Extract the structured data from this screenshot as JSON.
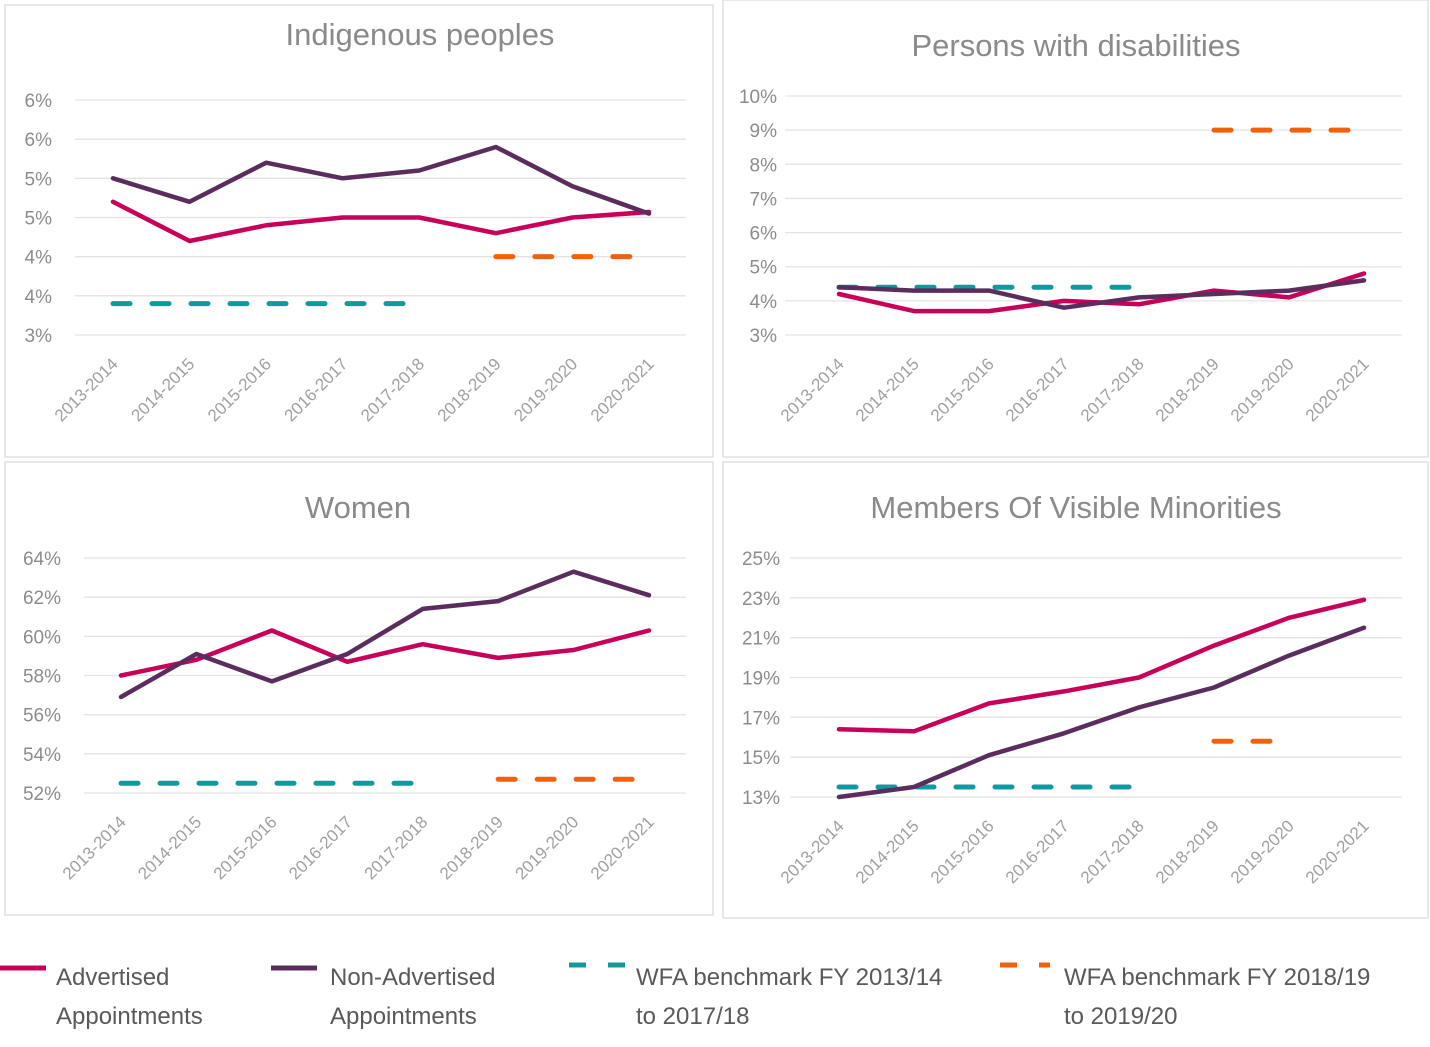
{
  "legend": {
    "items": [
      {
        "key": "advertised",
        "lines": [
          "Advertised",
          "Appointments"
        ],
        "color": "#c8005a",
        "style": "solid"
      },
      {
        "key": "non_advertised",
        "lines": [
          "Non-Advertised",
          "Appointments"
        ],
        "color": "#5b2d5e",
        "style": "solid"
      },
      {
        "key": "bench1",
        "lines": [
          "WFA benchmark FY 2013/14",
          "to 2017/18"
        ],
        "color": "#12989f",
        "style": "dashed"
      },
      {
        "key": "bench2",
        "lines": [
          "WFA benchmark FY 2018/19",
          "to 2019/20"
        ],
        "color": "#f3600d",
        "style": "dashed"
      }
    ]
  },
  "chart_data": [
    {
      "id": "indigenous",
      "type": "line",
      "title": "Indigenous peoples",
      "xlabel": "",
      "ylabel": "",
      "categories": [
        "2013-2014",
        "2014-2015",
        "2015-2016",
        "2016-2017",
        "2017-2018",
        "2018-2019",
        "2019-2020",
        "2020-2021"
      ],
      "ylim": [
        3.0,
        6.0
      ],
      "yticks": [
        3.0,
        3.5,
        4.0,
        4.5,
        5.0,
        5.5,
        6.0
      ],
      "ytick_labels": [
        "3%",
        "4%",
        "4%",
        "5%",
        "5%",
        "6%",
        "6%"
      ],
      "grid": true,
      "series": [
        {
          "key": "advertised",
          "name": "Advertised Appointments",
          "values": [
            4.7,
            4.2,
            4.4,
            4.5,
            4.5,
            4.3,
            4.5,
            4.57
          ]
        },
        {
          "key": "non_advertised",
          "name": "Non-Advertised Appointments",
          "values": [
            5.0,
            4.7,
            5.2,
            5.0,
            5.1,
            5.4,
            4.9,
            4.55
          ]
        }
      ],
      "benchmarks": [
        {
          "key": "bench1",
          "name": "WFA benchmark FY 2013/14 to 2017/18",
          "value": 3.4,
          "from": "2013-2014",
          "to": "2017-2018"
        },
        {
          "key": "bench2",
          "name": "WFA benchmark FY 2018/19 to 2019/20",
          "value": 4.0,
          "from": "2018-2019",
          "to": "2020-2021"
        }
      ]
    },
    {
      "id": "disabilities",
      "type": "line",
      "title": "Persons with disabilities",
      "xlabel": "",
      "ylabel": "",
      "categories": [
        "2013-2014",
        "2014-2015",
        "2015-2016",
        "2016-2017",
        "2017-2018",
        "2018-2019",
        "2019-2020",
        "2020-2021"
      ],
      "ylim": [
        3,
        10
      ],
      "yticks": [
        3,
        4,
        5,
        6,
        7,
        8,
        9,
        10
      ],
      "ytick_labels": [
        "3%",
        "4%",
        "5%",
        "6%",
        "7%",
        "8%",
        "9%",
        "10%"
      ],
      "grid": true,
      "series": [
        {
          "key": "advertised",
          "name": "Advertised Appointments",
          "values": [
            4.2,
            3.7,
            3.7,
            4.0,
            3.9,
            4.3,
            4.1,
            4.8
          ]
        },
        {
          "key": "non_advertised",
          "name": "Non-Advertised Appointments",
          "values": [
            4.4,
            4.3,
            4.3,
            3.8,
            4.1,
            4.2,
            4.3,
            4.6
          ]
        }
      ],
      "benchmarks": [
        {
          "key": "bench1",
          "name": "WFA benchmark FY 2013/14 to 2017/18",
          "value": 4.4,
          "from": "2013-2014",
          "to": "2017-2018"
        },
        {
          "key": "bench2",
          "name": "WFA benchmark FY 2018/19 to 2019/20",
          "value": 9.0,
          "from": "2018-2019",
          "to": "2020-2021"
        }
      ]
    },
    {
      "id": "women",
      "type": "line",
      "title": "Women",
      "xlabel": "",
      "ylabel": "",
      "categories": [
        "2013-2014",
        "2014-2015",
        "2015-2016",
        "2016-2017",
        "2017-2018",
        "2018-2019",
        "2019-2020",
        "2020-2021"
      ],
      "ylim": [
        52,
        64
      ],
      "yticks": [
        52,
        54,
        56,
        58,
        60,
        62,
        64
      ],
      "ytick_labels": [
        "52%",
        "54%",
        "56%",
        "58%",
        "60%",
        "62%",
        "64%"
      ],
      "grid": true,
      "series": [
        {
          "key": "advertised",
          "name": "Advertised Appointments",
          "values": [
            58.0,
            58.8,
            60.3,
            58.7,
            59.6,
            58.9,
            59.3,
            60.3
          ]
        },
        {
          "key": "non_advertised",
          "name": "Non-Advertised Appointments",
          "values": [
            56.9,
            59.1,
            57.7,
            59.1,
            61.4,
            61.8,
            63.3,
            62.1
          ]
        }
      ],
      "benchmarks": [
        {
          "key": "bench1",
          "name": "WFA benchmark FY 2013/14 to 2017/18",
          "value": 52.5,
          "from": "2013-2014",
          "to": "2017-2018"
        },
        {
          "key": "bench2",
          "name": "WFA benchmark FY 2018/19 to 2019/20",
          "value": 52.7,
          "from": "2018-2019",
          "to": "2020-2021"
        }
      ]
    },
    {
      "id": "visible_minorities",
      "type": "line",
      "title": "Members Of Visible Minorities",
      "xlabel": "",
      "ylabel": "",
      "categories": [
        "2013-2014",
        "2014-2015",
        "2015-2016",
        "2016-2017",
        "2017-2018",
        "2018-2019",
        "2019-2020",
        "2020-2021"
      ],
      "ylim": [
        13,
        25
      ],
      "yticks": [
        13,
        15,
        17,
        19,
        21,
        23,
        25
      ],
      "ytick_labels": [
        "13%",
        "15%",
        "17%",
        "19%",
        "21%",
        "23%",
        "25%"
      ],
      "grid": true,
      "series": [
        {
          "key": "advertised",
          "name": "Advertised Appointments",
          "values": [
            16.4,
            16.3,
            17.7,
            18.3,
            19.0,
            20.6,
            22.0,
            22.9
          ]
        },
        {
          "key": "non_advertised",
          "name": "Non-Advertised Appointments",
          "values": [
            13.0,
            13.5,
            15.1,
            16.2,
            17.5,
            18.5,
            20.1,
            21.5
          ]
        }
      ],
      "benchmarks": [
        {
          "key": "bench1",
          "name": "WFA benchmark FY 2013/14 to 2017/18",
          "value": 13.5,
          "from": "2013-2014",
          "to": "2017-2018"
        },
        {
          "key": "bench2",
          "name": "WFA benchmark FY 2018/19 to 2019/20",
          "value": 15.8,
          "from": "2018-2019",
          "to": "2019-2020"
        }
      ]
    }
  ]
}
